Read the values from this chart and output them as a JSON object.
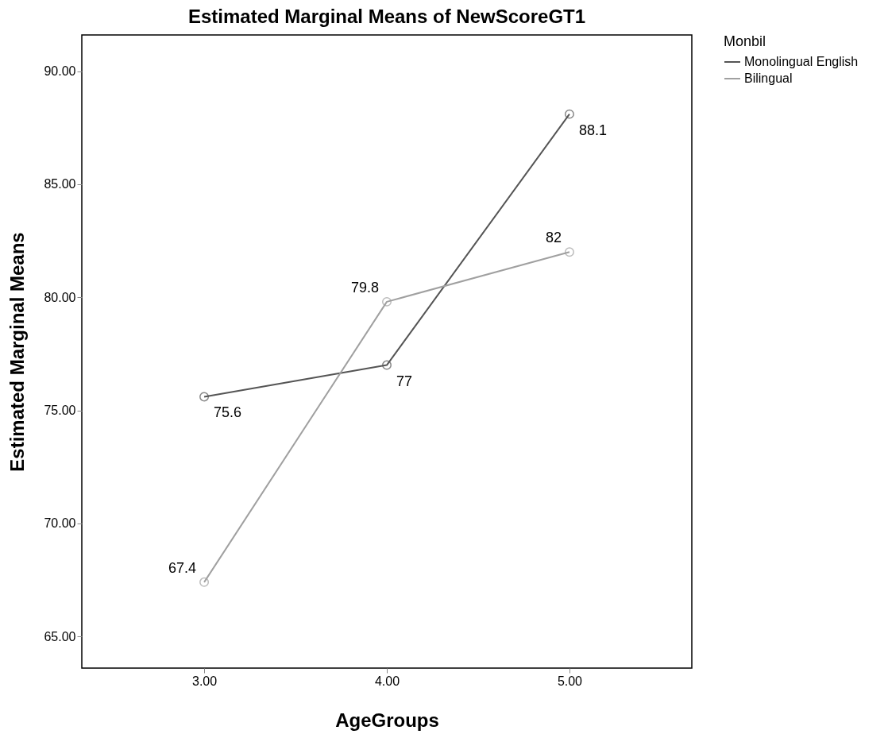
{
  "chart_data": {
    "type": "line",
    "title": "Estimated Marginal Means of NewScoreGT1",
    "xlabel": "AgeGroups",
    "ylabel": "Estimated Marginal Means",
    "legend_title": "Monbil",
    "categories": [
      "3.00",
      "4.00",
      "5.00"
    ],
    "series": [
      {
        "name": "Monolingual English",
        "color": "#555555",
        "values": [
          75.6,
          77,
          88.1
        ]
      },
      {
        "name": "Bilingual",
        "color": "#a0a0a0",
        "values": [
          67.4,
          79.8,
          82
        ]
      }
    ],
    "ylim": [
      63.6,
      91.6
    ],
    "yticks": [
      {
        "value": 65,
        "label": "65.00"
      },
      {
        "value": 70,
        "label": "70.00"
      },
      {
        "value": 75,
        "label": "75.00"
      },
      {
        "value": 80,
        "label": "80.00"
      },
      {
        "value": 85,
        "label": "85.00"
      },
      {
        "value": 90,
        "label": "90.00"
      }
    ],
    "grid": false,
    "legend": "top right",
    "marker": "circle",
    "line_style": "solid",
    "data_labels": true
  }
}
